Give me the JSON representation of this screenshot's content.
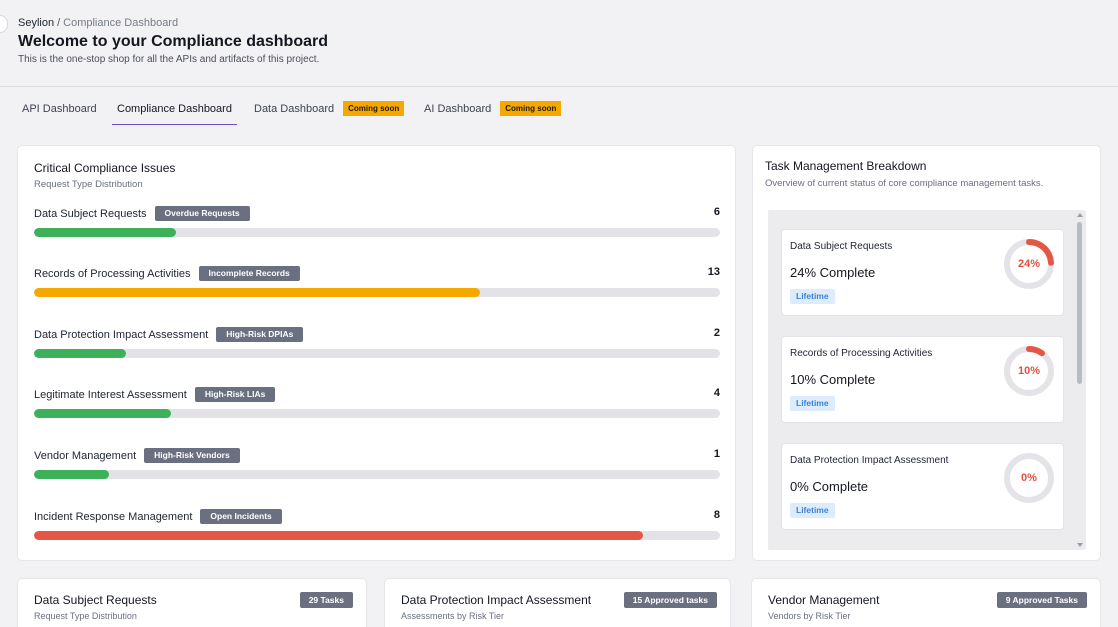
{
  "breadcrumb": {
    "root": "Seylion",
    "separator": "/",
    "current": "Compliance Dashboard"
  },
  "page": {
    "title": "Welcome to your Compliance dashboard",
    "subtitle": "This is the one-stop shop for all the APIs and artifacts of this project."
  },
  "tabs": [
    {
      "label": "API Dashboard",
      "active": false
    },
    {
      "label": "Compliance Dashboard",
      "active": true
    },
    {
      "label": "Data Dashboard",
      "active": false,
      "badge": "Coming soon"
    },
    {
      "label": "AI Dashboard",
      "active": false,
      "badge": "Coming soon"
    }
  ],
  "critical_issues": {
    "title": "Critical Compliance Issues",
    "subtitle": "Request Type Distribution",
    "items": [
      {
        "label": "Data Subject Requests",
        "badge": "Overdue Requests",
        "count": "6",
        "progress": 0.207,
        "color": "#3cb15a"
      },
      {
        "label": "Records of Processing Activities",
        "badge": "Incomplete Records",
        "count": "13",
        "progress": 0.65,
        "color": "#f5a800"
      },
      {
        "label": "Data Protection Impact Assessment",
        "badge": "High-Risk DPIAs",
        "count": "2",
        "progress": 0.134,
        "color": "#3cb15a"
      },
      {
        "label": "Legitimate Interest Assessment",
        "badge": "High-Risk LIAs",
        "count": "4",
        "progress": 0.2,
        "color": "#3cb15a"
      },
      {
        "label": "Vendor Management",
        "badge": "High-Risk Vendors",
        "count": "1",
        "progress": 0.11,
        "color": "#3cb15a"
      },
      {
        "label": "Incident Response Management",
        "badge": "Open Incidents",
        "count": "8",
        "progress": 0.888,
        "color": "#e35744"
      }
    ]
  },
  "task_breakdown": {
    "title": "Task Management Breakdown",
    "subtitle": "Overview of current status of core compliance management tasks.",
    "tasks": [
      {
        "name": "Data Subject Requests",
        "complete_text": "24% Complete",
        "ring_label": "24%",
        "percent": 24,
        "tag": "Lifetime"
      },
      {
        "name": "Records of Processing Activities",
        "complete_text": "10% Complete",
        "ring_label": "10%",
        "percent": 10,
        "tag": "Lifetime"
      },
      {
        "name": "Data Protection Impact Assessment",
        "complete_text": "0% Complete",
        "ring_label": "0%",
        "percent": 0,
        "tag": "Lifetime"
      }
    ]
  },
  "bottom_cards": [
    {
      "title": "Data Subject Requests",
      "subtitle": "Request Type Distribution",
      "badge": "29 Tasks"
    },
    {
      "title": "Data Protection Impact Assessment",
      "subtitle": "Assessments by Risk Tier",
      "badge": "15 Approved tasks"
    },
    {
      "title": "Vendor Management",
      "subtitle": "Vendors by Risk Tier",
      "badge": "9 Approved Tasks"
    }
  ],
  "colors": {
    "accent": "#6b4fc8",
    "ring": "#e35744",
    "ring_track": "#e4e4e8"
  }
}
